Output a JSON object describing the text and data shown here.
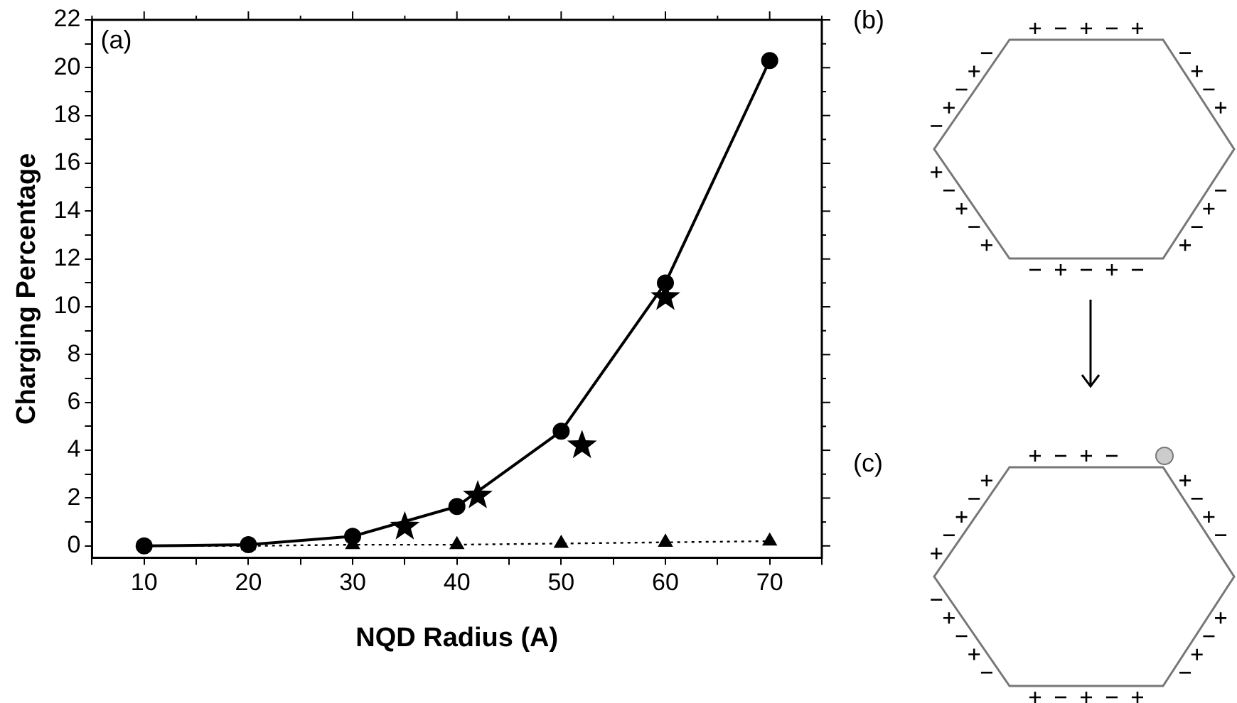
{
  "chart_data": {
    "type": "line",
    "xlabel": "NQD Radius (A)",
    "ylabel": "Charging Percentage",
    "annotations": [
      "(a)",
      "(b)",
      "(c)"
    ],
    "xlim": [
      5,
      75
    ],
    "xticks": [
      {
        "value": 5,
        "label": null
      },
      10,
      {
        "value": 15,
        "label": null
      },
      20,
      {
        "value": 25,
        "label": null
      },
      30,
      {
        "value": 35,
        "label": null
      },
      40,
      {
        "value": 45,
        "label": null
      },
      50,
      {
        "value": 55,
        "label": null
      },
      60,
      {
        "value": 65,
        "label": null
      },
      70,
      {
        "value": 75,
        "label": null
      }
    ],
    "ylim": [
      -0.5,
      22
    ],
    "yticks": [
      0,
      {
        "value": 1,
        "label": null
      },
      2,
      {
        "value": 3,
        "label": null
      },
      4,
      {
        "value": 5,
        "label": null
      },
      6,
      {
        "value": 7,
        "label": null
      },
      8,
      {
        "value": 9,
        "label": null
      },
      10,
      {
        "value": 11,
        "label": null
      },
      12,
      {
        "value": 13,
        "label": null
      },
      14,
      {
        "value": 15,
        "label": null
      },
      16,
      {
        "value": 17,
        "label": null
      },
      18,
      {
        "value": 19,
        "label": null
      },
      20,
      {
        "value": 21,
        "label": null
      },
      22
    ],
    "grid": false,
    "legend": false,
    "series": [
      {
        "color": "#000000",
        "marker": "circle",
        "line_style": "solid",
        "x": [
          10,
          20,
          30,
          40,
          50,
          60,
          70
        ],
        "values": [
          0,
          0.05,
          0.4,
          1.65,
          4.8,
          11.0,
          20.3
        ]
      },
      {
        "type": "scatter",
        "color": "#000000",
        "marker": "star",
        "x": [
          35,
          42,
          52,
          60
        ],
        "values": [
          0.8,
          2.1,
          4.2,
          10.4
        ]
      },
      {
        "color": "#000000",
        "marker": "triangle",
        "line_style": "dotted",
        "x": [
          10,
          20,
          30,
          40,
          50,
          60,
          70
        ],
        "values": [
          0,
          0,
          0.05,
          0.05,
          0.1,
          0.15,
          0.2
        ]
      }
    ]
  }
}
